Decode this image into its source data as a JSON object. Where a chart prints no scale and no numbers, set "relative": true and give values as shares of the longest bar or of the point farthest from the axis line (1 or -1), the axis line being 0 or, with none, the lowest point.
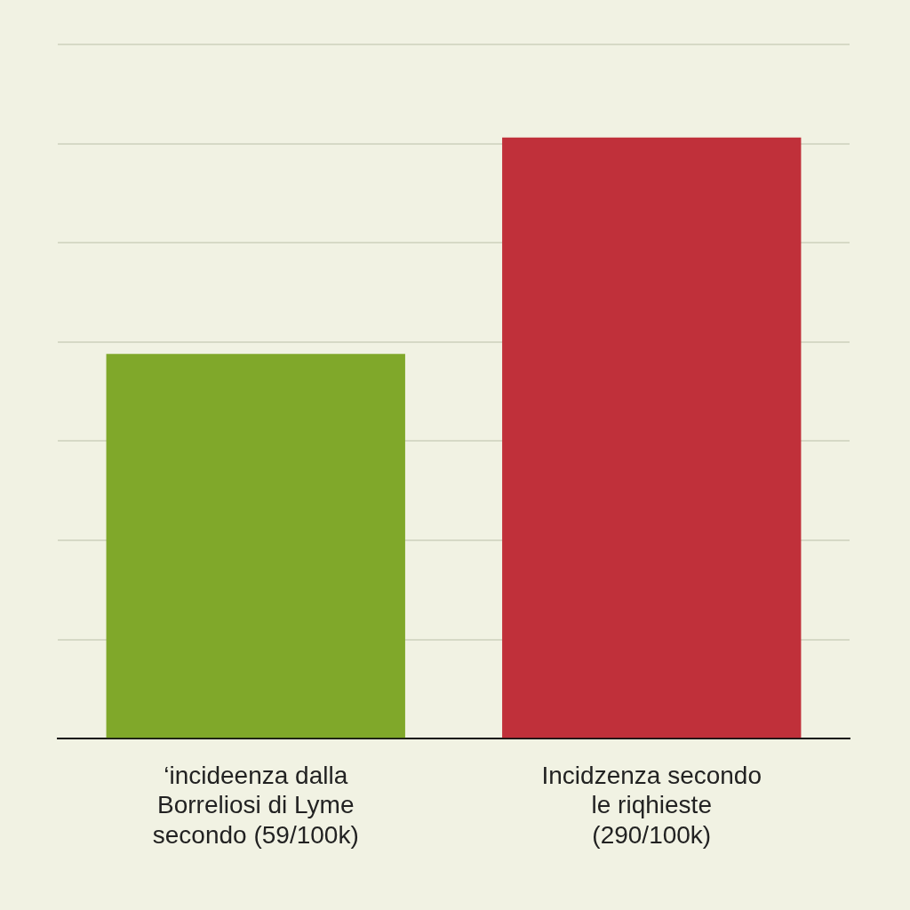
{
  "chart_data": {
    "type": "bar",
    "relative": true,
    "categories": [
      "‘incideenza dalla\nBorreliosi di Lyme\nsecondo (59/100k)",
      "Incidzenza secondo\nle riqhieste\n(290/100k)"
    ],
    "colors": [
      "#80a82a",
      "#c0303a"
    ],
    "values": [
      0.64,
      1
    ],
    "grid": "y"
  }
}
